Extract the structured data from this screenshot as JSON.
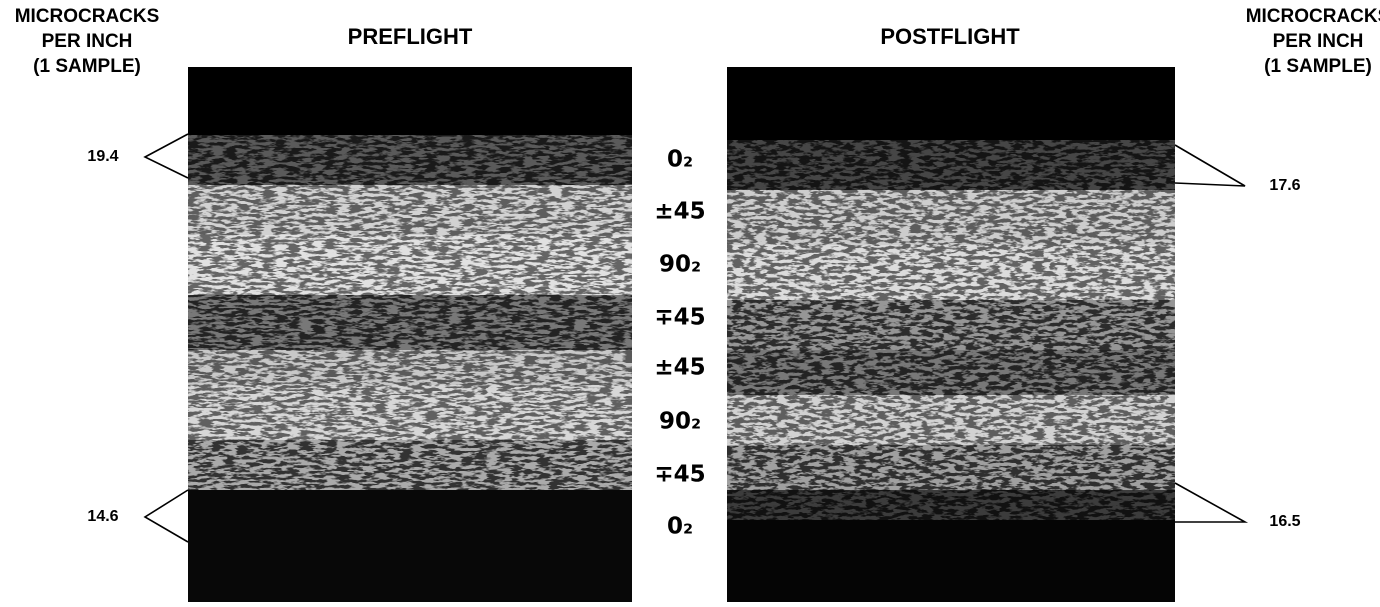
{
  "header_left": {
    "lines": [
      "MICROCRACKS",
      "PER INCH",
      "(1 SAMPLE)"
    ]
  },
  "header_right": {
    "lines": [
      "MICROCRACKS",
      "PER INCH",
      "(1 SAMPLE)"
    ]
  },
  "panels": [
    {
      "title": "PREFLIGHT"
    },
    {
      "title": "POSTFLIGHT"
    }
  ],
  "plies": [
    "0₂",
    "±45",
    "90₂",
    "∓45",
    "±45",
    "90₂",
    "∓45",
    "0₂"
  ],
  "microcracks": {
    "preflight": {
      "top": 19.4,
      "bottom": 14.6
    },
    "postflight": {
      "top": 17.6,
      "bottom": 16.5
    }
  }
}
